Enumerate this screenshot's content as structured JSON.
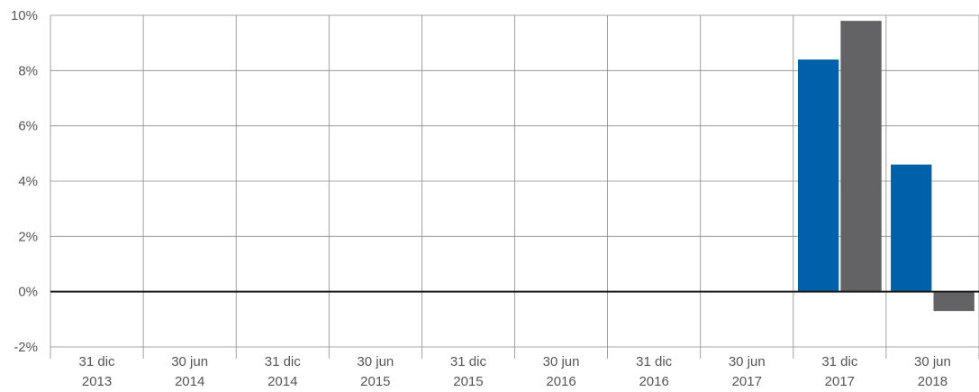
{
  "chart_data": {
    "type": "bar",
    "categories": [
      [
        "31 dic",
        "2013"
      ],
      [
        "30 jun",
        "2014"
      ],
      [
        "31 dic",
        "2014"
      ],
      [
        "30 jun",
        "2015"
      ],
      [
        "31 dic",
        "2015"
      ],
      [
        "30 jun",
        "2016"
      ],
      [
        "31 dic",
        "2016"
      ],
      [
        "30 jun",
        "2017"
      ],
      [
        "31 dic",
        "2017"
      ],
      [
        "30 jun",
        "2018"
      ]
    ],
    "series": [
      {
        "color": "#0060a9",
        "values": [
          null,
          null,
          null,
          null,
          null,
          null,
          null,
          null,
          8.4,
          4.6
        ]
      },
      {
        "color": "#636366",
        "values": [
          null,
          null,
          null,
          null,
          null,
          null,
          null,
          null,
          9.8,
          -0.7
        ]
      }
    ],
    "ylim": [
      -2,
      10
    ],
    "yticks": [
      -2,
      0,
      2,
      4,
      6,
      8,
      10
    ],
    "ytick_labels": [
      "-2%",
      "0%",
      "2%",
      "4%",
      "6%",
      "8%",
      "10%"
    ],
    "grid": true
  }
}
